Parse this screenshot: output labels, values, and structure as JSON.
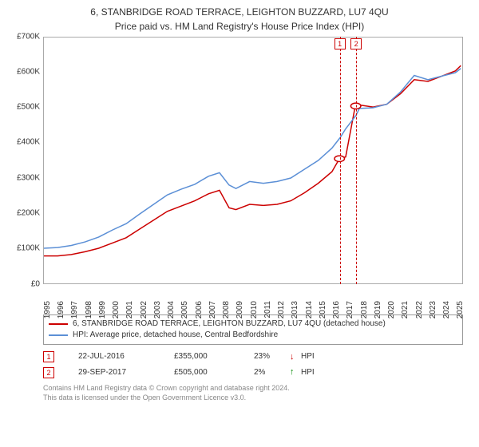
{
  "title": "6, STANBRIDGE ROAD TERRACE, LEIGHTON BUZZARD, LU7 4QU",
  "subtitle": "Price paid vs. HM Land Registry's House Price Index (HPI)",
  "chart": {
    "type": "line",
    "background_color": "#ffffff",
    "border_color": "#aaaaaa",
    "x_axis": {
      "min": 1995,
      "max": 2025.5,
      "ticks": [
        1995,
        1996,
        1997,
        1998,
        1999,
        2000,
        2001,
        2002,
        2003,
        2004,
        2005,
        2006,
        2007,
        2008,
        2009,
        2010,
        2011,
        2012,
        2013,
        2014,
        2015,
        2016,
        2017,
        2018,
        2019,
        2020,
        2021,
        2022,
        2023,
        2024,
        2025
      ],
      "label_fontsize": 10,
      "label_rotation": -90
    },
    "y_axis": {
      "min": 0,
      "max": 700000,
      "ticks": [
        {
          "v": 0,
          "label": "£0"
        },
        {
          "v": 100000,
          "label": "£100K"
        },
        {
          "v": 200000,
          "label": "£200K"
        },
        {
          "v": 300000,
          "label": "£300K"
        },
        {
          "v": 400000,
          "label": "£400K"
        },
        {
          "v": 500000,
          "label": "£500K"
        },
        {
          "v": 600000,
          "label": "£600K"
        },
        {
          "v": 700000,
          "label": "£700K"
        }
      ],
      "label_fontsize": 10
    },
    "series": [
      {
        "id": "property",
        "label": "6, STANBRIDGE ROAD TERRACE, LEIGHTON BUZZARD, LU7 4QU (detached house)",
        "color": "#cc0000",
        "line_width": 1.5,
        "data": [
          [
            1995,
            78000
          ],
          [
            1996,
            78000
          ],
          [
            1997,
            82000
          ],
          [
            1998,
            90000
          ],
          [
            1999,
            100000
          ],
          [
            2000,
            115000
          ],
          [
            2001,
            130000
          ],
          [
            2002,
            155000
          ],
          [
            2003,
            180000
          ],
          [
            2004,
            205000
          ],
          [
            2005,
            220000
          ],
          [
            2006,
            235000
          ],
          [
            2007,
            255000
          ],
          [
            2007.8,
            265000
          ],
          [
            2008.5,
            215000
          ],
          [
            2009,
            210000
          ],
          [
            2010,
            225000
          ],
          [
            2011,
            222000
          ],
          [
            2012,
            225000
          ],
          [
            2013,
            235000
          ],
          [
            2014,
            258000
          ],
          [
            2015,
            285000
          ],
          [
            2016,
            318000
          ],
          [
            2016.55,
            355000
          ],
          [
            2017,
            360000
          ],
          [
            2017.7,
            505000
          ],
          [
            2018,
            508000
          ],
          [
            2019,
            502000
          ],
          [
            2020,
            510000
          ],
          [
            2021,
            540000
          ],
          [
            2022,
            580000
          ],
          [
            2023,
            575000
          ],
          [
            2024,
            590000
          ],
          [
            2025,
            605000
          ],
          [
            2025.4,
            620000
          ]
        ]
      },
      {
        "id": "hpi",
        "label": "HPI: Average price, detached house, Central Bedfordshire",
        "color": "#5b8fd6",
        "line_width": 1.5,
        "data": [
          [
            1995,
            100000
          ],
          [
            1996,
            102000
          ],
          [
            1997,
            108000
          ],
          [
            1998,
            118000
          ],
          [
            1999,
            132000
          ],
          [
            2000,
            152000
          ],
          [
            2001,
            170000
          ],
          [
            2002,
            198000
          ],
          [
            2003,
            225000
          ],
          [
            2004,
            252000
          ],
          [
            2005,
            268000
          ],
          [
            2006,
            282000
          ],
          [
            2007,
            305000
          ],
          [
            2007.8,
            315000
          ],
          [
            2008.5,
            280000
          ],
          [
            2009,
            270000
          ],
          [
            2010,
            290000
          ],
          [
            2011,
            285000
          ],
          [
            2012,
            290000
          ],
          [
            2013,
            300000
          ],
          [
            2014,
            325000
          ],
          [
            2015,
            350000
          ],
          [
            2016,
            385000
          ],
          [
            2016.6,
            415000
          ],
          [
            2017,
            440000
          ],
          [
            2017.75,
            478000
          ],
          [
            2018,
            498000
          ],
          [
            2019,
            500000
          ],
          [
            2020,
            510000
          ],
          [
            2021,
            545000
          ],
          [
            2022,
            592000
          ],
          [
            2023,
            580000
          ],
          [
            2024,
            590000
          ],
          [
            2025,
            600000
          ],
          [
            2025.4,
            612000
          ]
        ]
      }
    ],
    "markers": [
      {
        "num": "1",
        "x": 2016.55,
        "y": 355000,
        "color": "#cc0000",
        "date": "22-JUL-2016",
        "price": "£355,000",
        "pct": "23%",
        "arrow": "↓",
        "arrow_color": "#cc0000",
        "vs": "HPI"
      },
      {
        "num": "2",
        "x": 2017.74,
        "y": 505000,
        "color": "#cc0000",
        "date": "29-SEP-2017",
        "price": "£505,000",
        "pct": "2%",
        "arrow": "↑",
        "arrow_color": "#008800",
        "vs": "HPI"
      }
    ]
  },
  "legend": {
    "border_color": "#999999",
    "fontsize": 10
  },
  "footer": {
    "line1": "Contains HM Land Registry data © Crown copyright and database right 2024.",
    "line2": "This data is licensed under the Open Government Licence v3.0.",
    "color": "#888888",
    "fontsize": 9
  }
}
